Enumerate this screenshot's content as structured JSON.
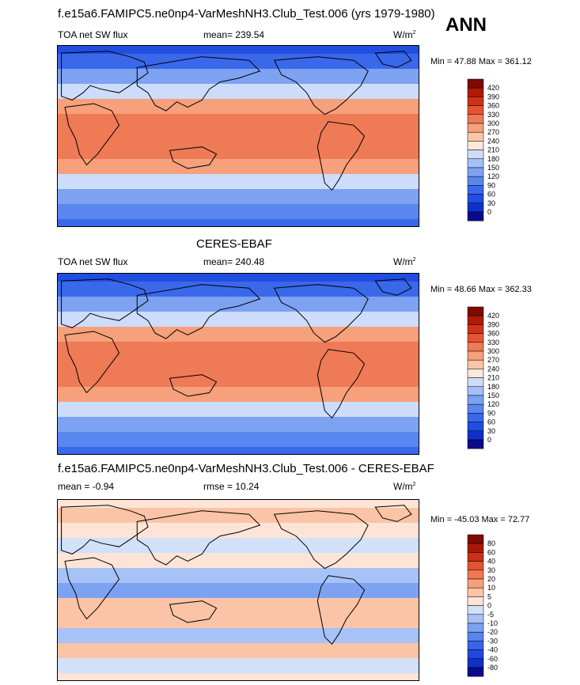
{
  "header": {
    "title": "f.e15a6.FAMIPC5.ne0np4-VarMeshNH3.Club_Test.006 (yrs 1979-1980)",
    "season": "ANN"
  },
  "colors": {
    "abs_scale": [
      "#0a0a8a",
      "#1030c8",
      "#1f4ee0",
      "#3a68ea",
      "#5a86ef",
      "#7ea2f2",
      "#a4c0f6",
      "#cddcfa",
      "#fbe8da",
      "#fbc6a8",
      "#f6a07c",
      "#ef7a56",
      "#e45434",
      "#cf3218",
      "#ad1a08",
      "#7e0a02"
    ],
    "diff_scale": [
      "#0a0a8a",
      "#1030c8",
      "#2148de",
      "#3a64e8",
      "#5a84ee",
      "#7ea2f2",
      "#a6c2f6",
      "#d2e0fa",
      "#fde4d6",
      "#fbc4a6",
      "#f6a07c",
      "#ef7852",
      "#e45232",
      "#cc3018",
      "#a8180a",
      "#7e0a02"
    ]
  },
  "panels": [
    {
      "title": "",
      "left_label": "TOA net SW flux",
      "stat_text": "mean= 239.54",
      "units": "W/m",
      "units_exp": "2",
      "minmax_text": "Min =  47.88 Max = 361.12"
    },
    {
      "title": "CERES-EBAF",
      "left_label": "TOA net SW flux",
      "stat_text": "mean= 240.48",
      "units": "W/m",
      "units_exp": "2",
      "minmax_text": "Min =  48.66 Max = 362.33"
    },
    {
      "title": "f.e15a6.FAMIPC5.ne0np4-VarMeshNH3.Club_Test.006 - CERES-EBAF",
      "left_label": "mean =  -0.94",
      "stat_text": "rmse =  10.24",
      "units": "W/m",
      "units_exp": "2",
      "minmax_text": "Min = -45.03 Max =  72.77"
    }
  ],
  "chart_data": [
    {
      "type": "heatmap",
      "projection": "cylindrical equidistant, centered on 180",
      "variable": "TOA net SW flux",
      "units": "W/m2",
      "mean": 239.54,
      "min": 47.88,
      "max": 361.12,
      "contour_levels": [
        0,
        30,
        60,
        90,
        120,
        150,
        180,
        210,
        240,
        270,
        300,
        330,
        360,
        390,
        420
      ],
      "colorbar_labels": [
        "420",
        "390",
        "360",
        "330",
        "300",
        "270",
        "240",
        "210",
        "180",
        "150",
        "120",
        "90",
        "60",
        "30",
        "0"
      ],
      "zonal_profile": [
        {
          "lat": -90,
          "value": 60
        },
        {
          "lat": -75,
          "value": 90
        },
        {
          "lat": -60,
          "value": 125
        },
        {
          "lat": -45,
          "value": 190
        },
        {
          "lat": -30,
          "value": 275
        },
        {
          "lat": -15,
          "value": 320
        },
        {
          "lat": 0,
          "value": 325
        },
        {
          "lat": 15,
          "value": 320
        },
        {
          "lat": 30,
          "value": 270
        },
        {
          "lat": 45,
          "value": 190
        },
        {
          "lat": 60,
          "value": 120
        },
        {
          "lat": 75,
          "value": 80
        },
        {
          "lat": 90,
          "value": 50
        }
      ]
    },
    {
      "type": "heatmap",
      "projection": "cylindrical equidistant, centered on 180",
      "variable": "TOA net SW flux",
      "units": "W/m2",
      "mean": 240.48,
      "min": 48.66,
      "max": 362.33,
      "contour_levels": [
        0,
        30,
        60,
        90,
        120,
        150,
        180,
        210,
        240,
        270,
        300,
        330,
        360,
        390,
        420
      ],
      "colorbar_labels": [
        "420",
        "390",
        "360",
        "330",
        "300",
        "270",
        "240",
        "210",
        "180",
        "150",
        "120",
        "90",
        "60",
        "30",
        "0"
      ],
      "zonal_profile": [
        {
          "lat": -90,
          "value": 60
        },
        {
          "lat": -75,
          "value": 92
        },
        {
          "lat": -60,
          "value": 130
        },
        {
          "lat": -45,
          "value": 195
        },
        {
          "lat": -30,
          "value": 278
        },
        {
          "lat": -15,
          "value": 322
        },
        {
          "lat": 0,
          "value": 322
        },
        {
          "lat": 15,
          "value": 318
        },
        {
          "lat": 30,
          "value": 272
        },
        {
          "lat": 45,
          "value": 195
        },
        {
          "lat": 60,
          "value": 122
        },
        {
          "lat": 75,
          "value": 82
        },
        {
          "lat": 90,
          "value": 52
        }
      ]
    },
    {
      "type": "heatmap",
      "projection": "cylindrical equidistant, centered on 180",
      "variable": "TOA net SW flux difference",
      "units": "W/m2",
      "mean": -0.94,
      "rmse": 10.24,
      "min": -45.03,
      "max": 72.77,
      "contour_levels": [
        -80,
        -60,
        -40,
        -30,
        -20,
        -10,
        -5,
        0,
        5,
        10,
        20,
        30,
        40,
        60,
        80
      ],
      "colorbar_labels": [
        "80",
        "60",
        "40",
        "30",
        "20",
        "10",
        "5",
        "0",
        "-5",
        "-10",
        "-20",
        "-30",
        "-40",
        "-60",
        "-80"
      ],
      "zonal_profile": [
        {
          "lat": -90,
          "value": 2
        },
        {
          "lat": -75,
          "value": -5
        },
        {
          "lat": -60,
          "value": 5
        },
        {
          "lat": -45,
          "value": -8
        },
        {
          "lat": -30,
          "value": 6
        },
        {
          "lat": -15,
          "value": 8
        },
        {
          "lat": 0,
          "value": -12
        },
        {
          "lat": 15,
          "value": -6
        },
        {
          "lat": 30,
          "value": 4
        },
        {
          "lat": 45,
          "value": -4
        },
        {
          "lat": 60,
          "value": 2
        },
        {
          "lat": 75,
          "value": 6
        },
        {
          "lat": 90,
          "value": 2
        }
      ]
    }
  ]
}
